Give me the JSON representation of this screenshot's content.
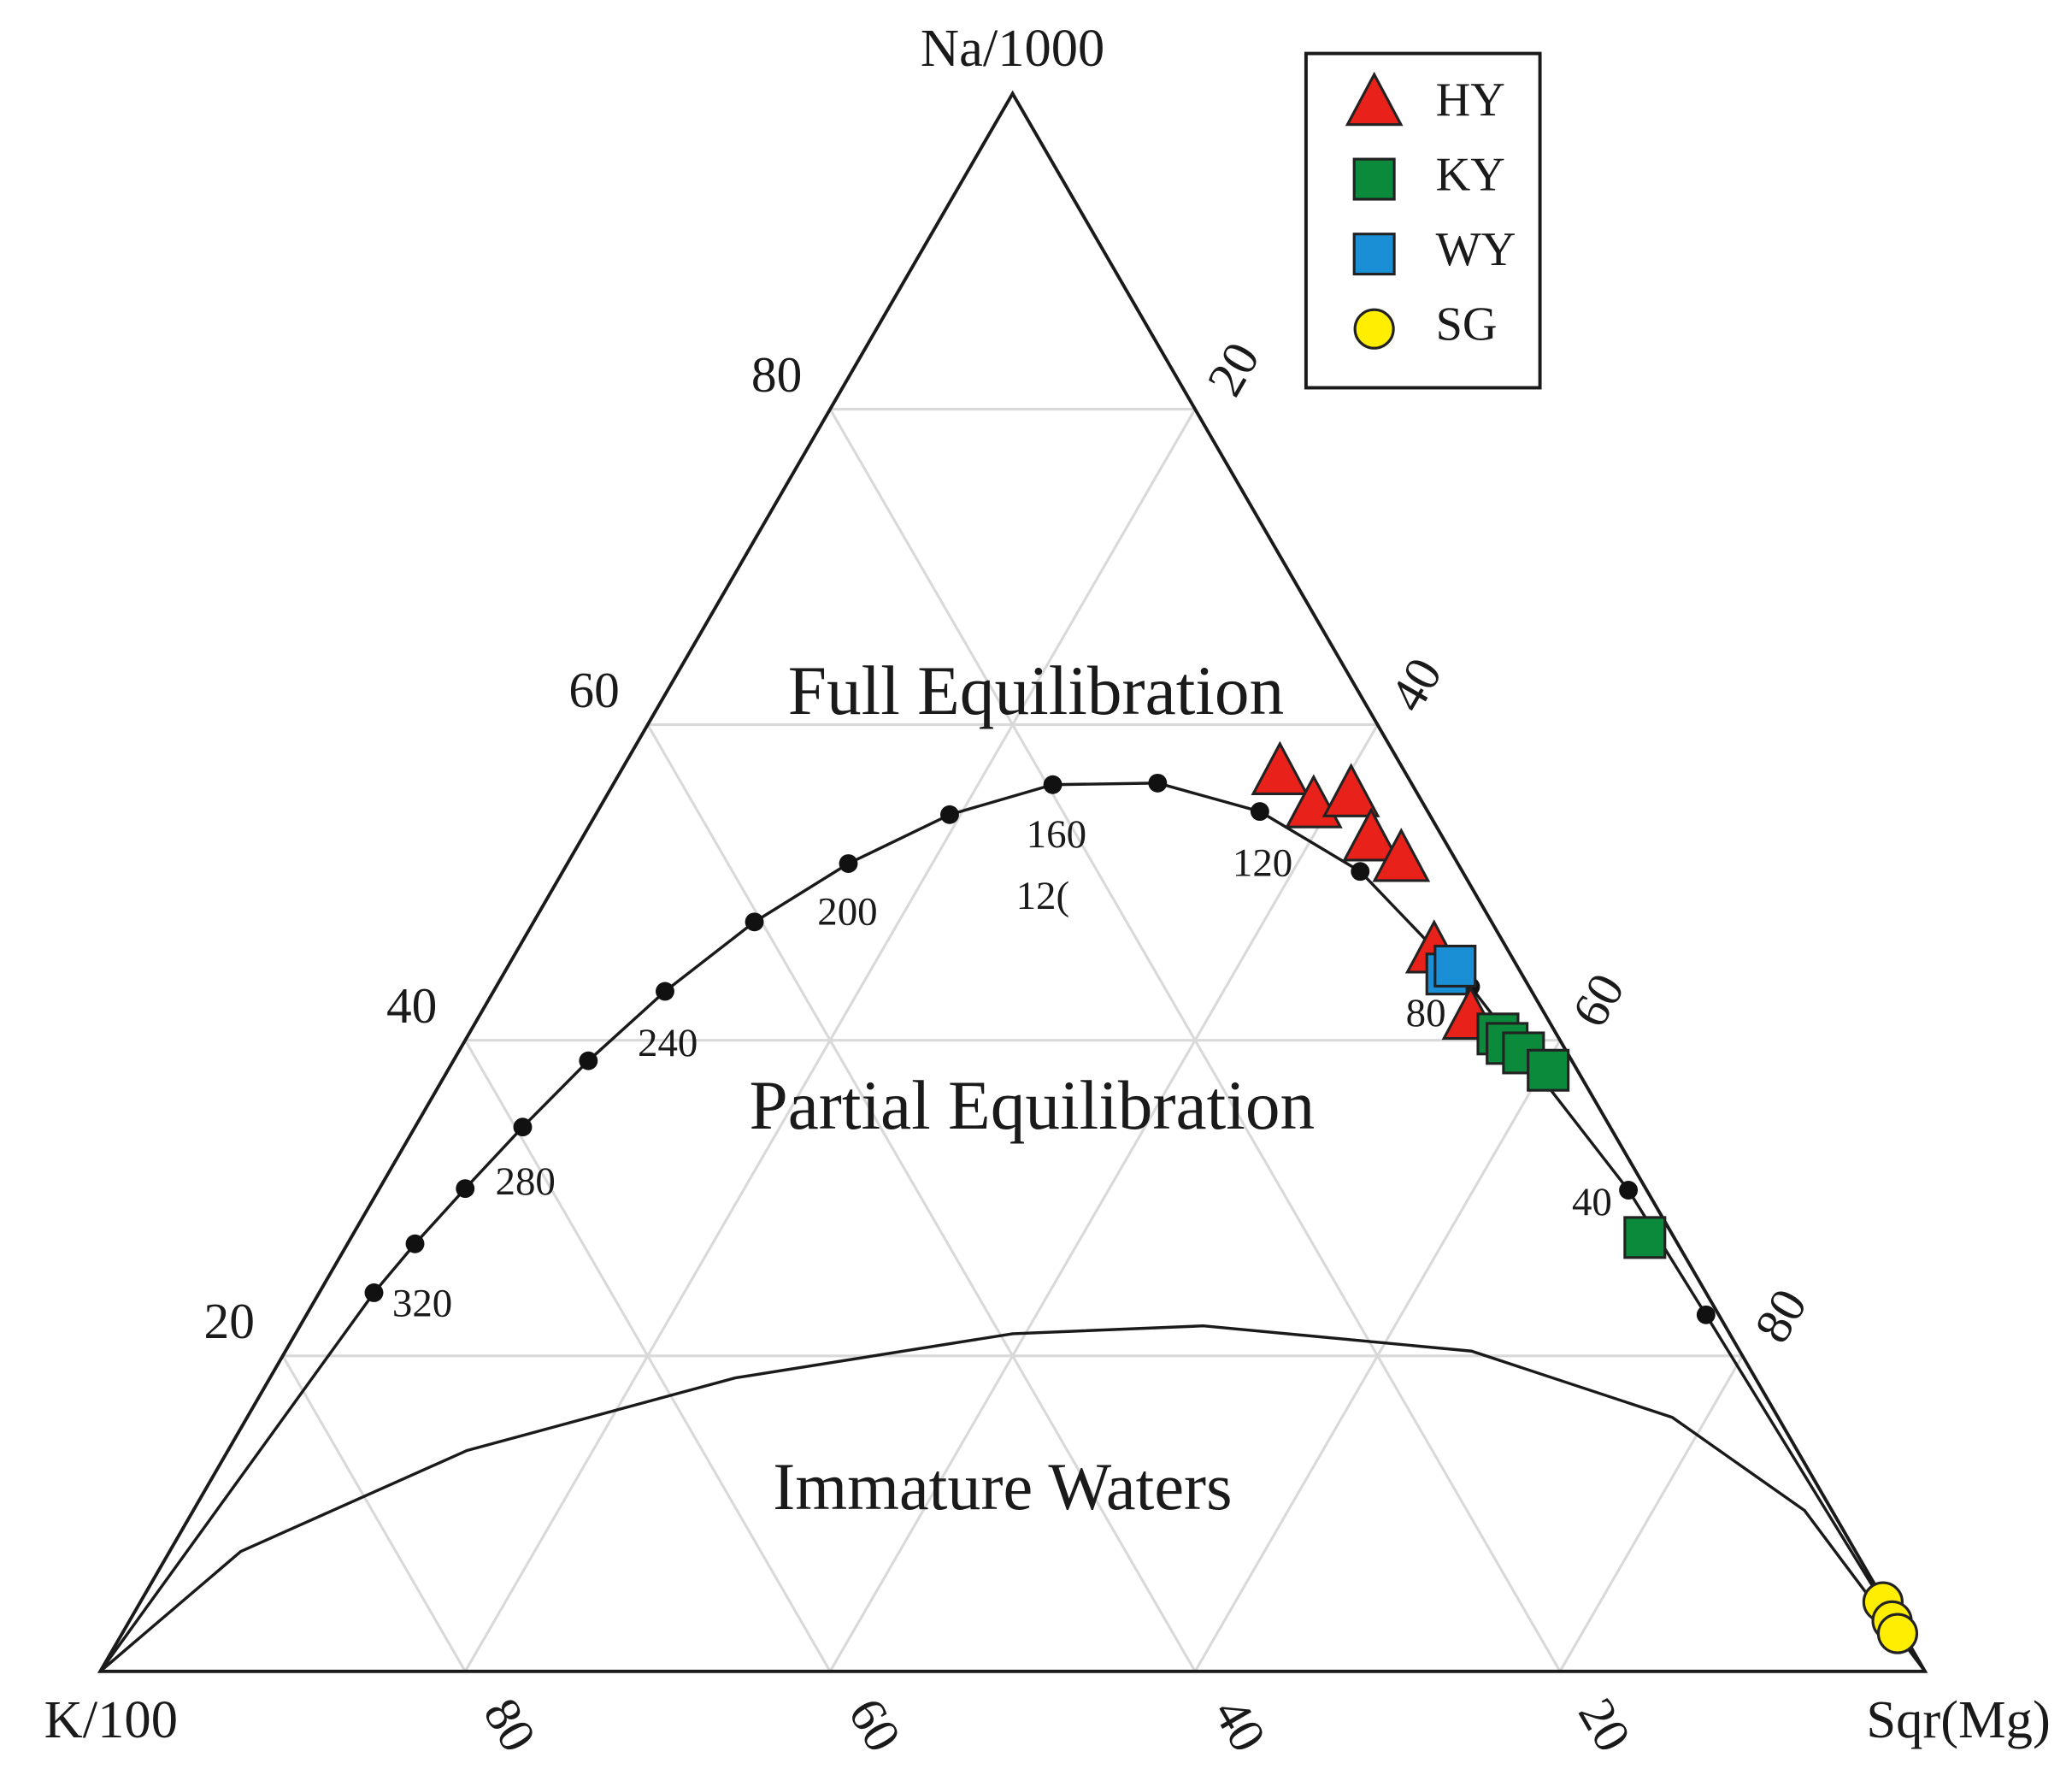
{
  "chart_data": {
    "type": "ternary",
    "axes": [
      {
        "name": "Na/1000",
        "ticks": [
          20,
          40,
          60,
          80
        ]
      },
      {
        "name": "K/100",
        "ticks": [
          20,
          40,
          60,
          80
        ]
      },
      {
        "name": "Sqr(Mg)",
        "ticks": [
          20,
          40,
          60,
          80
        ]
      }
    ],
    "grid": true,
    "legend": "upper right",
    "regions": [
      "Full Equilibration",
      "Partial Equilibration",
      "Immature Waters"
    ],
    "curves": [
      {
        "markers": true,
        "points": [
          [
            0,
            100,
            0
          ],
          [
            24.0,
            73.0,
            3.0
          ],
          [
            27.1,
            69.2,
            3.7
          ],
          [
            30.6,
            64.7,
            4.7
          ],
          [
            34.5,
            59.6,
            5.9
          ],
          [
            38.7,
            53.9,
            7.4
          ],
          [
            43.1,
            47.5,
            9.4
          ],
          [
            47.5,
            40.4,
            12.1
          ],
          [
            51.2,
            33.4,
            15.4
          ],
          [
            54.3,
            26.3,
            19.4
          ],
          [
            56.2,
            19.7,
            24.1
          ],
          [
            56.3,
            13.9,
            29.8
          ],
          [
            54.5,
            9.2,
            36.3
          ],
          [
            50.7,
            5.6,
            43.7
          ],
          [
            43.4,
            3.2,
            53.4
          ],
          [
            30.5,
            1.0,
            68.5
          ],
          [
            22.6,
            0.7,
            76.7
          ],
          [
            0,
            0,
            100
          ]
        ]
      },
      {
        "markers": false,
        "points": [
          [
            0,
            100,
            0
          ],
          [
            7.6,
            88.5,
            3.9
          ],
          [
            14.0,
            72.9,
            13.1
          ],
          [
            18.6,
            55.9,
            25.5
          ],
          [
            21.4,
            39.3,
            39.3
          ],
          [
            21.9,
            28.6,
            49.5
          ],
          [
            20.3,
            14.7,
            65.0
          ],
          [
            16.1,
            5.8,
            78.1
          ],
          [
            10.2,
            1.5,
            88.3
          ],
          [
            0,
            0,
            100
          ]
        ]
      }
    ],
    "temperature_labels": [
      {
        "text": "320",
        "point": [
          23.1,
          70.8,
          6.1
        ]
      },
      {
        "text": "280",
        "point": [
          30.8,
          61.3,
          7.9
        ]
      },
      {
        "text": "240",
        "point": [
          39.6,
          49.1,
          11.3
        ]
      },
      {
        "text": "200",
        "point": [
          47.9,
          35.1,
          17.0
        ]
      },
      {
        "text": "160",
        "point": [
          52.8,
          21.2,
          26.0
        ]
      },
      {
        "text": "12(",
        "point": [
          48.9,
          23.9,
          27.2
        ]
      },
      {
        "text": "120",
        "point": [
          51.0,
          10.8,
          38.2
        ]
      },
      {
        "text": "80",
        "point": [
          41.5,
          6.6,
          51.9
        ]
      },
      {
        "text": "40",
        "point": [
          29.5,
          3.5,
          67.0
        ]
      }
    ],
    "series": [
      {
        "name": "HY",
        "color": "#e8221b",
        "marker": "triangle",
        "values": [
          [
            56.9,
            6.9,
            36.2
          ],
          [
            54.8,
            6.1,
            39.1
          ],
          [
            55.5,
            3.7,
            40.8
          ],
          [
            52.7,
            4.0,
            43.3
          ],
          [
            51.4,
            3.0,
            45.6
          ],
          [
            45.6,
            4.1,
            50.3
          ],
          [
            41.4,
            4.2,
            54.4
          ]
        ]
      },
      {
        "name": "KY",
        "color": "#0a8a3a",
        "marker": "square",
        "values": [
          [
            40.4,
            3.2,
            56.4
          ],
          [
            39.8,
            3.0,
            57.2
          ],
          [
            39.2,
            2.4,
            58.4
          ],
          [
            38.1,
            1.6,
            60.3
          ],
          [
            27.5,
            1.6,
            70.9
          ]
        ]
      },
      {
        "name": "WY",
        "color": "#1a8fd6",
        "marker": "square",
        "values": [
          [
            44.2,
            4.1,
            51.7
          ],
          [
            44.7,
            3.4,
            51.9
          ]
        ]
      },
      {
        "name": "SG",
        "color": "#ffee00",
        "marker": "circle",
        "values": [
          [
            4.4,
            0.1,
            95.5
          ],
          [
            3.2,
            0.2,
            96.6
          ],
          [
            2.4,
            0.3,
            97.3
          ]
        ]
      }
    ]
  }
}
